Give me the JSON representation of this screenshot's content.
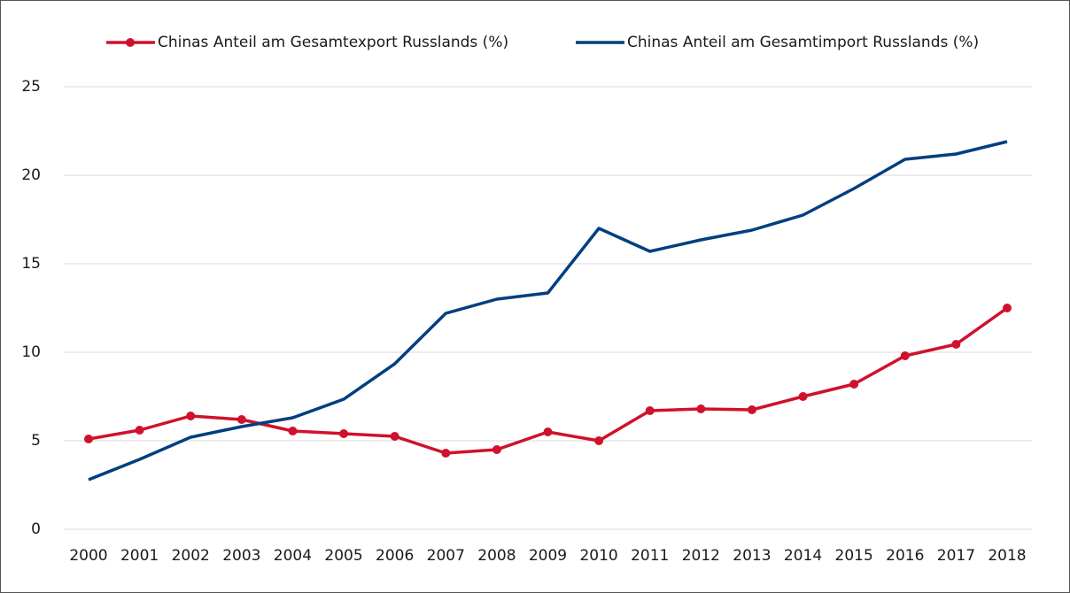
{
  "chart_data": {
    "type": "line",
    "categories": [
      "2000",
      "2001",
      "2002",
      "2003",
      "2004",
      "2005",
      "2006",
      "2007",
      "2008",
      "2009",
      "2010",
      "2011",
      "2012",
      "2013",
      "2014",
      "2015",
      "2016",
      "2017",
      "2018"
    ],
    "series": [
      {
        "name": "Chinas Anteil am Gesamtexport Russlands (%)",
        "color": "#d0112b",
        "markers": true,
        "values": [
          5.1,
          5.6,
          6.4,
          6.2,
          5.55,
          5.4,
          5.25,
          4.3,
          4.5,
          5.5,
          5.0,
          6.7,
          6.8,
          6.75,
          7.5,
          8.2,
          9.8,
          10.45,
          12.5
        ]
      },
      {
        "name": "Chinas Anteil am Gesamtimport Russlands (%)",
        "color": "#003f7f",
        "markers": false,
        "values": [
          2.8,
          3.95,
          5.2,
          5.8,
          6.3,
          7.35,
          9.35,
          12.2,
          13.0,
          13.35,
          17.0,
          15.7,
          16.35,
          16.9,
          17.75,
          19.25,
          20.9,
          21.2,
          21.9
        ]
      }
    ],
    "ylim": [
      0,
      25
    ],
    "yticks": [
      0,
      5,
      10,
      15,
      20,
      25
    ],
    "grid": true,
    "legend": "top"
  }
}
